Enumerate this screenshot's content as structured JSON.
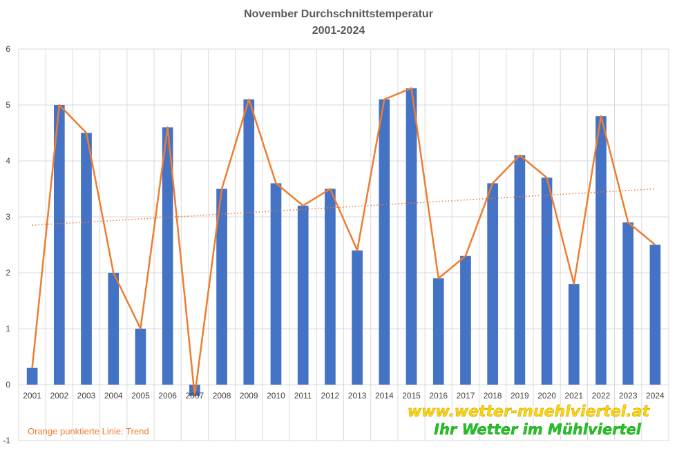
{
  "chart_data": {
    "type": "bar",
    "title": "November Durchschnittstemperatur",
    "subtitle": "2001-2024",
    "categories": [
      "2001",
      "2002",
      "2003",
      "2004",
      "2005",
      "2006",
      "2007",
      "2008",
      "2009",
      "2010",
      "2011",
      "2012",
      "2013",
      "2014",
      "2015",
      "2016",
      "2017",
      "2018",
      "2019",
      "2020",
      "2021",
      "2022",
      "2023",
      "2024"
    ],
    "values": [
      0.3,
      5.0,
      4.5,
      2.0,
      1.0,
      4.6,
      -0.2,
      3.5,
      5.1,
      3.6,
      3.2,
      3.5,
      2.4,
      5.1,
      5.3,
      1.9,
      2.3,
      3.6,
      4.1,
      3.7,
      1.8,
      4.8,
      2.9,
      2.5
    ],
    "overlay_line": "same values as bars",
    "trend": {
      "style": "dotted",
      "start": 2.85,
      "end": 3.5
    },
    "ylim": [
      -1,
      6
    ],
    "yticks": [
      -1,
      0,
      1,
      2,
      3,
      4,
      5,
      6
    ],
    "grid": true,
    "legend": "none",
    "colors": {
      "bar": "#4472C4",
      "line": "#ED7D31",
      "trend": "#ED7D31",
      "grid": "#D9D9D9"
    },
    "annotation": "Orange punktierte Linie: Trend"
  },
  "watermark": {
    "url": "www.wetter-muehlviertel.at",
    "slogan": "Ihr Wetter im Mühlviertel",
    "url_color": "#FFD700",
    "slogan_color": "#22C322"
  }
}
